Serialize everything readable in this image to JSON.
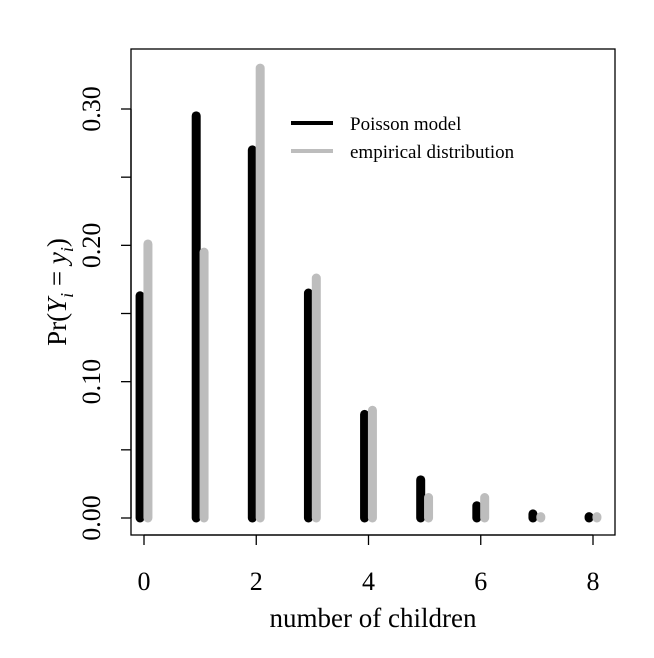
{
  "chart_data": {
    "type": "bar",
    "title": "",
    "xlabel": "number of children",
    "ylabel": {
      "prefix": "Pr(",
      "Y": "Y",
      "sub_i": "i",
      "eq": " = ",
      "y": "y",
      "sub_i2": "i",
      "suffix": ")"
    },
    "x": [
      0,
      1,
      2,
      3,
      4,
      5,
      6,
      7,
      8
    ],
    "xlim": [
      -0.2,
      8.2
    ],
    "ylim": [
      0,
      0.33
    ],
    "x_ticks": [
      0,
      2,
      4,
      6,
      8
    ],
    "x_tick_labels": [
      "0",
      "2",
      "4",
      "6",
      "8"
    ],
    "y_ticks": [
      0.0,
      0.05,
      0.1,
      0.15,
      0.2,
      0.25,
      0.3
    ],
    "y_tick_labels": [
      "0.00",
      "",
      "0.10",
      "",
      "0.20",
      "",
      "0.30"
    ],
    "grid": false,
    "legend_position": "top-right",
    "series": [
      {
        "name": "Poisson model",
        "color": "#000000",
        "values": [
          0.163,
          0.295,
          0.27,
          0.165,
          0.076,
          0.028,
          0.009,
          0.003,
          0.001
        ]
      },
      {
        "name": "empirical distribution",
        "color": "#bdbdbd",
        "values": [
          0.201,
          0.195,
          0.33,
          0.176,
          0.079,
          0.015,
          0.015,
          0.001,
          0.001
        ]
      }
    ]
  }
}
